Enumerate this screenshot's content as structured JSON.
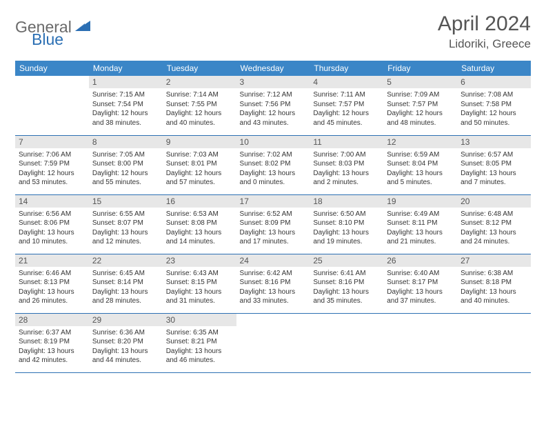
{
  "logo": {
    "part1": "General",
    "part2": "Blue"
  },
  "title": "April 2024",
  "location": "Lidoriki, Greece",
  "colors": {
    "header_bg": "#3b86c7",
    "header_text": "#ffffff",
    "daynum_bg": "#e7e7e7",
    "border": "#2b6fb3",
    "title_text": "#555555",
    "logo_gray": "#6a6a6a",
    "logo_blue": "#2b6fb3"
  },
  "weekdays": [
    "Sunday",
    "Monday",
    "Tuesday",
    "Wednesday",
    "Thursday",
    "Friday",
    "Saturday"
  ],
  "weeks": [
    [
      {
        "blank": true
      },
      {
        "n": "1",
        "sr": "7:15 AM",
        "ss": "7:54 PM",
        "d1": "12 hours",
        "d2": "and 38 minutes."
      },
      {
        "n": "2",
        "sr": "7:14 AM",
        "ss": "7:55 PM",
        "d1": "12 hours",
        "d2": "and 40 minutes."
      },
      {
        "n": "3",
        "sr": "7:12 AM",
        "ss": "7:56 PM",
        "d1": "12 hours",
        "d2": "and 43 minutes."
      },
      {
        "n": "4",
        "sr": "7:11 AM",
        "ss": "7:57 PM",
        "d1": "12 hours",
        "d2": "and 45 minutes."
      },
      {
        "n": "5",
        "sr": "7:09 AM",
        "ss": "7:57 PM",
        "d1": "12 hours",
        "d2": "and 48 minutes."
      },
      {
        "n": "6",
        "sr": "7:08 AM",
        "ss": "7:58 PM",
        "d1": "12 hours",
        "d2": "and 50 minutes."
      }
    ],
    [
      {
        "n": "7",
        "sr": "7:06 AM",
        "ss": "7:59 PM",
        "d1": "12 hours",
        "d2": "and 53 minutes."
      },
      {
        "n": "8",
        "sr": "7:05 AM",
        "ss": "8:00 PM",
        "d1": "12 hours",
        "d2": "and 55 minutes."
      },
      {
        "n": "9",
        "sr": "7:03 AM",
        "ss": "8:01 PM",
        "d1": "12 hours",
        "d2": "and 57 minutes."
      },
      {
        "n": "10",
        "sr": "7:02 AM",
        "ss": "8:02 PM",
        "d1": "13 hours",
        "d2": "and 0 minutes."
      },
      {
        "n": "11",
        "sr": "7:00 AM",
        "ss": "8:03 PM",
        "d1": "13 hours",
        "d2": "and 2 minutes."
      },
      {
        "n": "12",
        "sr": "6:59 AM",
        "ss": "8:04 PM",
        "d1": "13 hours",
        "d2": "and 5 minutes."
      },
      {
        "n": "13",
        "sr": "6:57 AM",
        "ss": "8:05 PM",
        "d1": "13 hours",
        "d2": "and 7 minutes."
      }
    ],
    [
      {
        "n": "14",
        "sr": "6:56 AM",
        "ss": "8:06 PM",
        "d1": "13 hours",
        "d2": "and 10 minutes."
      },
      {
        "n": "15",
        "sr": "6:55 AM",
        "ss": "8:07 PM",
        "d1": "13 hours",
        "d2": "and 12 minutes."
      },
      {
        "n": "16",
        "sr": "6:53 AM",
        "ss": "8:08 PM",
        "d1": "13 hours",
        "d2": "and 14 minutes."
      },
      {
        "n": "17",
        "sr": "6:52 AM",
        "ss": "8:09 PM",
        "d1": "13 hours",
        "d2": "and 17 minutes."
      },
      {
        "n": "18",
        "sr": "6:50 AM",
        "ss": "8:10 PM",
        "d1": "13 hours",
        "d2": "and 19 minutes."
      },
      {
        "n": "19",
        "sr": "6:49 AM",
        "ss": "8:11 PM",
        "d1": "13 hours",
        "d2": "and 21 minutes."
      },
      {
        "n": "20",
        "sr": "6:48 AM",
        "ss": "8:12 PM",
        "d1": "13 hours",
        "d2": "and 24 minutes."
      }
    ],
    [
      {
        "n": "21",
        "sr": "6:46 AM",
        "ss": "8:13 PM",
        "d1": "13 hours",
        "d2": "and 26 minutes."
      },
      {
        "n": "22",
        "sr": "6:45 AM",
        "ss": "8:14 PM",
        "d1": "13 hours",
        "d2": "and 28 minutes."
      },
      {
        "n": "23",
        "sr": "6:43 AM",
        "ss": "8:15 PM",
        "d1": "13 hours",
        "d2": "and 31 minutes."
      },
      {
        "n": "24",
        "sr": "6:42 AM",
        "ss": "8:16 PM",
        "d1": "13 hours",
        "d2": "and 33 minutes."
      },
      {
        "n": "25",
        "sr": "6:41 AM",
        "ss": "8:16 PM",
        "d1": "13 hours",
        "d2": "and 35 minutes."
      },
      {
        "n": "26",
        "sr": "6:40 AM",
        "ss": "8:17 PM",
        "d1": "13 hours",
        "d2": "and 37 minutes."
      },
      {
        "n": "27",
        "sr": "6:38 AM",
        "ss": "8:18 PM",
        "d1": "13 hours",
        "d2": "and 40 minutes."
      }
    ],
    [
      {
        "n": "28",
        "sr": "6:37 AM",
        "ss": "8:19 PM",
        "d1": "13 hours",
        "d2": "and 42 minutes."
      },
      {
        "n": "29",
        "sr": "6:36 AM",
        "ss": "8:20 PM",
        "d1": "13 hours",
        "d2": "and 44 minutes."
      },
      {
        "n": "30",
        "sr": "6:35 AM",
        "ss": "8:21 PM",
        "d1": "13 hours",
        "d2": "and 46 minutes."
      },
      {
        "blank": true
      },
      {
        "blank": true
      },
      {
        "blank": true
      },
      {
        "blank": true
      }
    ]
  ],
  "labels": {
    "sunrise": "Sunrise: ",
    "sunset": "Sunset: ",
    "daylight": "Daylight: "
  }
}
